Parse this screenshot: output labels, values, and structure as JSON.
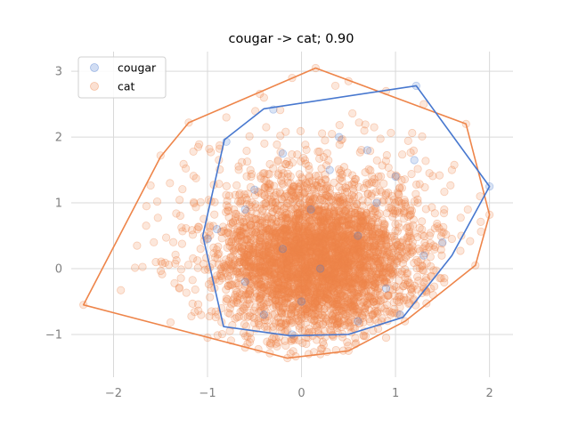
{
  "chart_data": {
    "type": "scatter",
    "title": "cougar -> cat; 0.90",
    "xlabel": "",
    "ylabel": "",
    "xlim": [
      -2.45,
      2.25
    ],
    "ylim": [
      -1.65,
      3.3
    ],
    "x_ticks": [
      -2,
      -1,
      0,
      1,
      2
    ],
    "y_ticks": [
      -1,
      0,
      1,
      2,
      3
    ],
    "x_tick_labels": [
      "−2",
      "−1",
      "0",
      "1",
      "2"
    ],
    "y_tick_labels": [
      "−1",
      "0",
      "1",
      "2",
      "3"
    ],
    "grid": true,
    "legend_position": "top-left",
    "series": [
      {
        "name": "cougar",
        "color": "#4878cf",
        "marker_alpha": 0.2,
        "hull": [
          [
            2.0,
            1.25
          ],
          [
            1.22,
            2.78
          ],
          [
            -0.4,
            2.43
          ],
          [
            -0.82,
            1.96
          ],
          [
            -1.05,
            0.5
          ],
          [
            -0.83,
            -0.88
          ],
          [
            -0.12,
            -1.02
          ],
          [
            0.5,
            -1.0
          ],
          [
            1.08,
            -0.74
          ],
          [
            1.6,
            0.2
          ]
        ],
        "points": [
          [
            1.22,
            2.78
          ],
          [
            -0.3,
            2.42
          ],
          [
            -0.8,
            1.93
          ],
          [
            1.2,
            1.65
          ],
          [
            -0.2,
            1.75
          ],
          [
            0.3,
            1.5
          ],
          [
            1.0,
            1.4
          ],
          [
            -0.5,
            1.2
          ],
          [
            0.8,
            1.0
          ],
          [
            0.1,
            0.9
          ],
          [
            -0.9,
            0.6
          ],
          [
            0.6,
            0.5
          ],
          [
            -0.2,
            0.3
          ],
          [
            1.3,
            0.2
          ],
          [
            0.2,
            0.0
          ],
          [
            -0.6,
            -0.2
          ],
          [
            0.9,
            -0.3
          ],
          [
            0.0,
            -0.5
          ],
          [
            -0.4,
            -0.7
          ],
          [
            0.6,
            -0.8
          ],
          [
            1.05,
            -0.7
          ],
          [
            -0.1,
            -1.0
          ],
          [
            2.0,
            1.25
          ],
          [
            1.5,
            0.4
          ],
          [
            -1.0,
            0.45
          ],
          [
            0.4,
            2.0
          ],
          [
            0.7,
            1.8
          ],
          [
            -0.6,
            0.9
          ]
        ]
      },
      {
        "name": "cat",
        "color": "#ee854a",
        "marker_alpha": 0.2,
        "hull": [
          [
            0.15,
            3.05
          ],
          [
            1.75,
            2.2
          ],
          [
            2.0,
            0.82
          ],
          [
            1.85,
            0.05
          ],
          [
            1.1,
            -0.8
          ],
          [
            0.5,
            -1.25
          ],
          [
            -0.15,
            -1.36
          ],
          [
            -2.32,
            -0.55
          ],
          [
            -1.5,
            1.7
          ],
          [
            -1.2,
            2.22
          ]
        ],
        "cluster": {
          "center": [
            0.15,
            0.1
          ],
          "spread": [
            0.5,
            0.55
          ],
          "count": 3200,
          "seed": 7
        },
        "halo": {
          "center": [
            0.2,
            0.6
          ],
          "spread": [
            0.75,
            0.8
          ],
          "count": 700,
          "seed": 11
        },
        "points": [
          [
            0.15,
            3.05
          ],
          [
            -2.32,
            -0.55
          ],
          [
            -1.5,
            1.72
          ],
          [
            -1.2,
            2.22
          ],
          [
            1.75,
            2.2
          ],
          [
            2.0,
            0.82
          ],
          [
            1.85,
            0.05
          ],
          [
            1.1,
            -0.8
          ],
          [
            0.5,
            -1.25
          ],
          [
            -0.15,
            -1.36
          ],
          [
            -1.65,
            0.95
          ],
          [
            -1.75,
            0.35
          ],
          [
            -1.4,
            1.3
          ],
          [
            -1.3,
            -0.3
          ],
          [
            1.3,
            2.5
          ],
          [
            0.9,
            2.7
          ],
          [
            -0.4,
            2.6
          ],
          [
            -0.8,
            2.3
          ],
          [
            1.6,
            1.5
          ],
          [
            1.7,
            0.5
          ],
          [
            1.9,
            1.1
          ],
          [
            1.4,
            -0.4
          ],
          [
            -1.0,
            -1.05
          ],
          [
            -0.6,
            -1.2
          ],
          [
            0.2,
            -1.3
          ],
          [
            0.9,
            -1.05
          ],
          [
            -1.55,
            0.1
          ],
          [
            -1.1,
            1.85
          ],
          [
            0.5,
            2.85
          ],
          [
            -0.1,
            2.9
          ]
        ]
      }
    ]
  }
}
